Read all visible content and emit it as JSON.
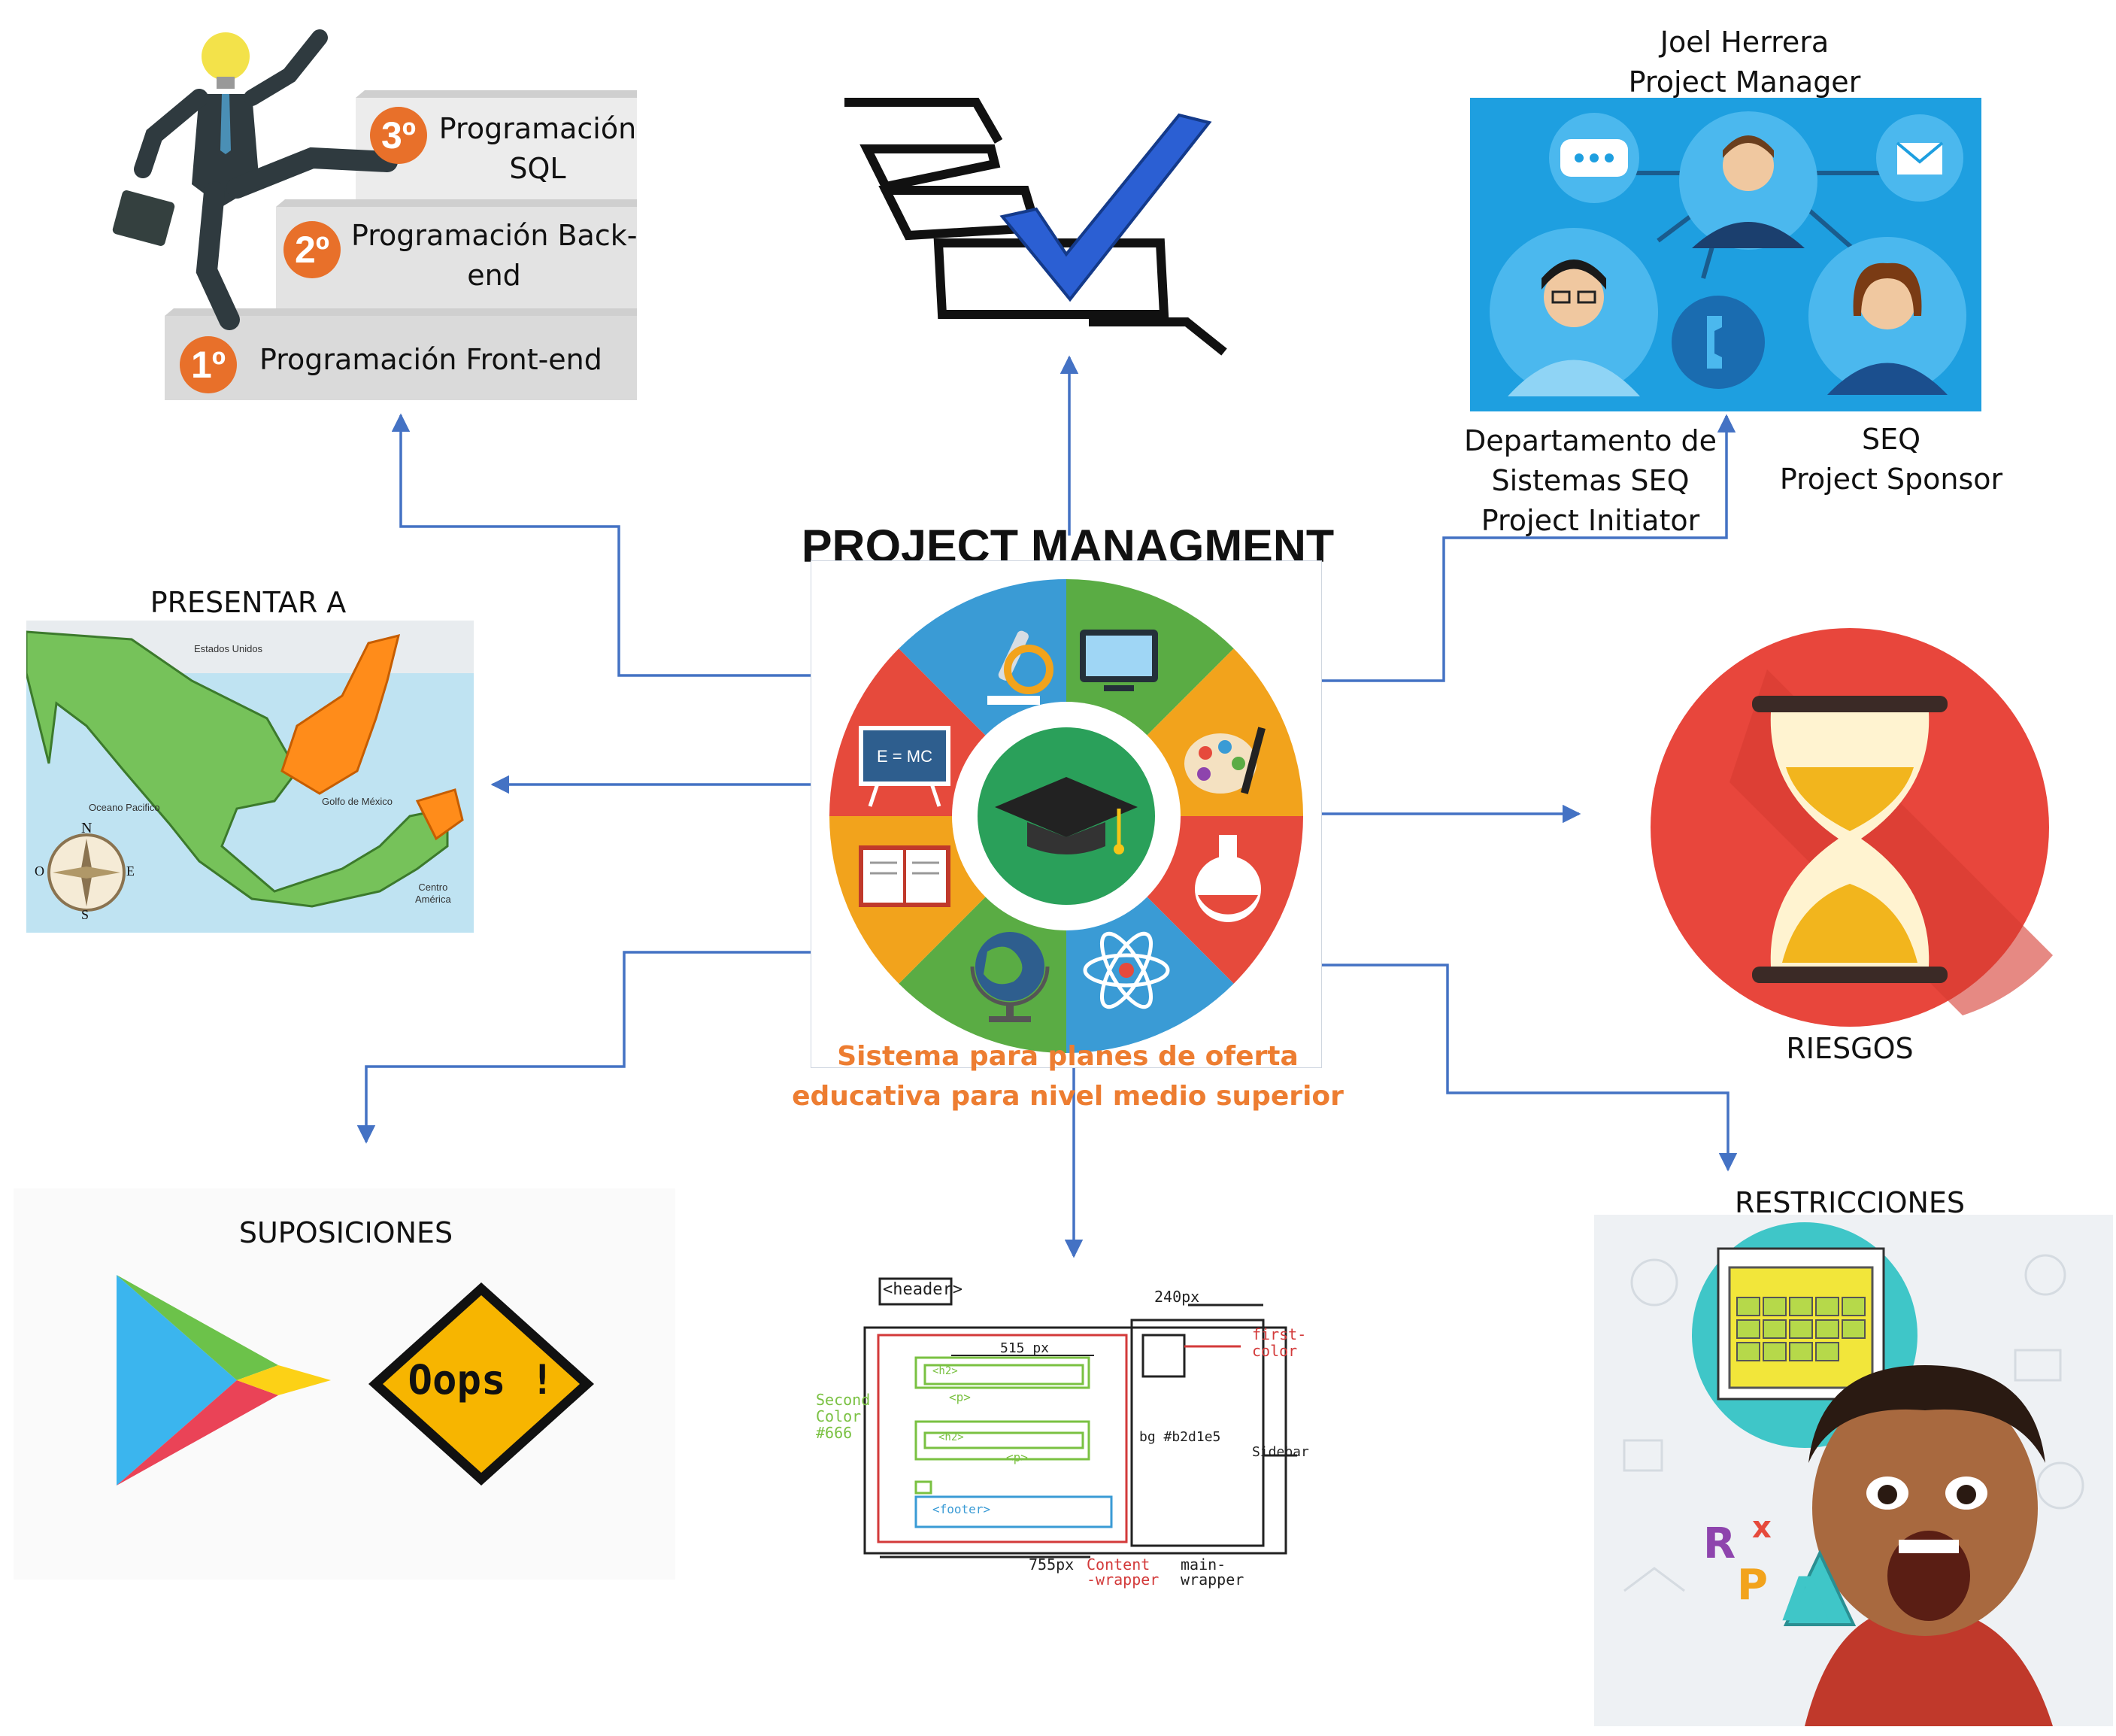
{
  "center": {
    "title": "PROJECT MANAGMENT",
    "subtitle_line1": "Sistema para planes de oferta",
    "subtitle_line2": "educativa para nivel medio superior",
    "emc2": "E = MC"
  },
  "stairs": {
    "step3_badge": "3º",
    "step3_label_line1": "Programación",
    "step3_label_line2": "SQL",
    "step2_badge": "2º",
    "step2_label_line1": "Programación Back-",
    "step2_label_line2": "end",
    "step1_badge": "1º",
    "step1_label": "Programación Front-end"
  },
  "stakeholders": {
    "manager_name": "Joel Herrera",
    "manager_role": "Project Manager",
    "initiator_line1": "Departamento de",
    "initiator_line2": "Sistemas SEQ",
    "initiator_line3": "Project Initiator",
    "sponsor_line1": "SEQ",
    "sponsor_line2": "Project Sponsor"
  },
  "map": {
    "title": "PRESENTAR A",
    "label_usa": "Estados Unidos",
    "label_pacific": "Oceano Pacifico",
    "label_gulf": "Golfo de México",
    "label_central1": "Centro",
    "label_central2": "América",
    "compass_n": "N",
    "compass_s": "S",
    "compass_e": "E",
    "compass_o": "O"
  },
  "risks": {
    "title": "RIESGOS"
  },
  "assumptions": {
    "title": "SUPOSICIONES",
    "oops": "Oops !"
  },
  "restrictions": {
    "title": "RESTRICCIONES",
    "letters": [
      "R",
      "P",
      "A",
      "x"
    ]
  },
  "wireframe": {
    "header": "<header>",
    "w240": "240px",
    "w515": "515 px",
    "w755": "755px",
    "first_color1": "first-",
    "first_color2": "color",
    "second_color1": "Second",
    "second_color2": "Color",
    "second_color3": "#666",
    "sidebar": "Sidebar",
    "bg": "bg #b2d1e5",
    "content_wrapper1": "Content",
    "content_wrapper2": "-wrapper",
    "main_wrapper1": "main-",
    "main_wrapper2": "wrapper",
    "footer": "<footer>",
    "p": "<p>",
    "h2": "<h2>"
  },
  "colors": {
    "arrow": "#4472c4",
    "orange_text": "#ed7d31",
    "badge": "#e8702a",
    "risk_red": "#e8463c",
    "stakeholder_bg": "#1e9fe0"
  }
}
